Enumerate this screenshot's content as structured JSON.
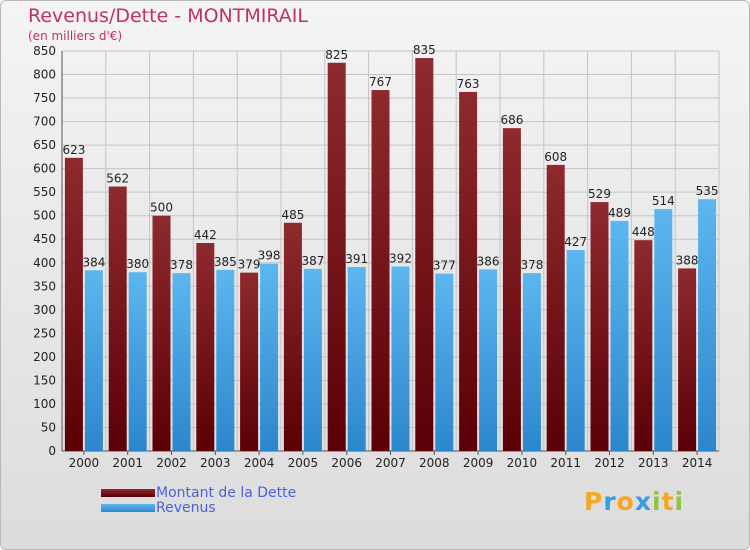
{
  "title": "Revenus/Dette - MONTMIRAIL",
  "subtitle": "(en milliers d'€)",
  "logo": {
    "letters": [
      "P",
      "r",
      "o",
      "x",
      "i",
      "t",
      "i"
    ]
  },
  "colors": {
    "dette": "#8b1a1f",
    "revenus": "#3a9be0",
    "title": "#c0306a"
  },
  "chart_data": {
    "type": "bar",
    "title": "Revenus/Dette - MONTMIRAIL",
    "ylabel": "(en milliers d'€)",
    "ylim": [
      0,
      850
    ],
    "yticks": [
      0,
      50,
      100,
      150,
      200,
      250,
      300,
      350,
      400,
      450,
      500,
      550,
      600,
      650,
      700,
      750,
      800,
      850
    ],
    "categories": [
      "2000",
      "2001",
      "2002",
      "2003",
      "2004",
      "2005",
      "2006",
      "2007",
      "2008",
      "2009",
      "2010",
      "2011",
      "2012",
      "2013",
      "2014"
    ],
    "series": [
      {
        "name": "Montant de la Dette",
        "values": [
          623,
          562,
          500,
          442,
          379,
          485,
          825,
          767,
          835,
          763,
          686,
          608,
          529,
          448,
          388
        ]
      },
      {
        "name": "Revenus",
        "values": [
          384,
          380,
          378,
          385,
          398,
          387,
          391,
          392,
          377,
          386,
          378,
          427,
          489,
          514,
          535
        ]
      }
    ],
    "legend": "bottom-left",
    "grid": true
  }
}
